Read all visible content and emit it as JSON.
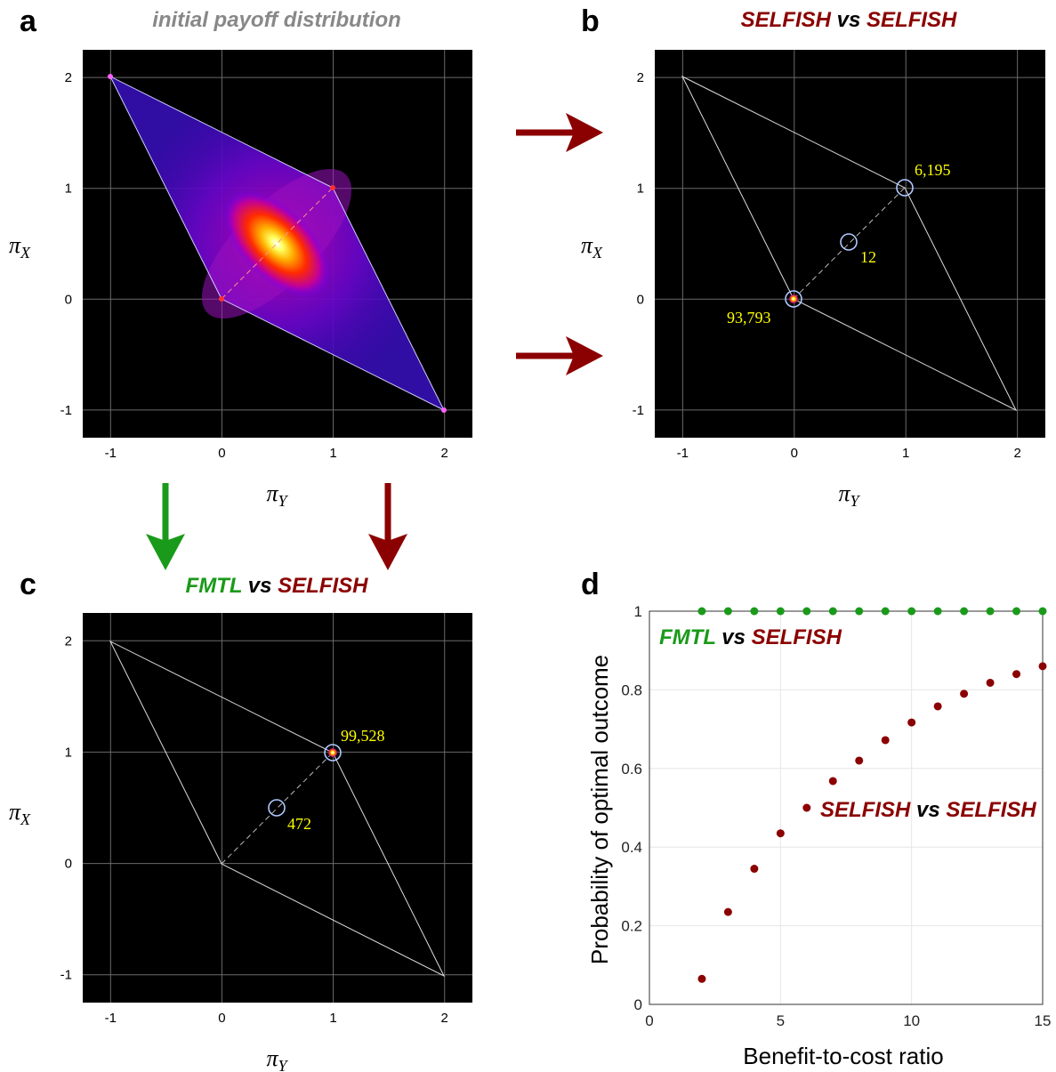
{
  "colors": {
    "selfish": "#8b0000",
    "fmtl": "#1a9a1a",
    "title_gray": "#888888",
    "annotation": "#ffff00"
  },
  "panels": {
    "a": {
      "letter": "a",
      "title": "initial payoff distribution",
      "xlabel": "π",
      "xlabel_sub": "Y",
      "ylabel": "π",
      "ylabel_sub": "X",
      "xticks": [
        "-1",
        "0",
        "1",
        "2"
      ],
      "yticks": [
        "2",
        "1",
        "0",
        "-1"
      ]
    },
    "b": {
      "letter": "b",
      "title_part1": "SELFISH",
      "title_vs": "vs",
      "title_part2": "SELFISH",
      "xlabel": "π",
      "xlabel_sub": "Y",
      "ylabel": "π",
      "ylabel_sub": "X",
      "xticks": [
        "-1",
        "0",
        "1",
        "2"
      ],
      "yticks": [
        "2",
        "1",
        "0",
        "-1"
      ],
      "annotations": [
        "6,195",
        "12",
        "93,793"
      ]
    },
    "c": {
      "letter": "c",
      "title_part1": "FMTL",
      "title_vs": "vs",
      "title_part2": "SELFISH",
      "xlabel": "π",
      "xlabel_sub": "Y",
      "ylabel": "π",
      "ylabel_sub": "X",
      "xticks": [
        "-1",
        "0",
        "1",
        "2"
      ],
      "yticks": [
        "2",
        "1",
        "0",
        "-1"
      ],
      "annotations": [
        "99,528",
        "472"
      ]
    },
    "d": {
      "letter": "d",
      "xlabel": "Benefit-to-cost ratio",
      "ylabel": "Probability of optimal outcome",
      "legend1_part1": "FMTL",
      "legend1_vs": "vs",
      "legend1_part2": "SELFISH",
      "legend2_part1": "SELFISH",
      "legend2_vs": "vs",
      "legend2_part2": "SELFISH"
    }
  },
  "chart_data": [
    {
      "type": "heatmap",
      "panel": "a",
      "title": "initial payoff distribution",
      "xlabel": "πY",
      "ylabel": "πX",
      "xlim": [
        -1.25,
        2.25
      ],
      "ylim": [
        -1.25,
        2.25
      ],
      "outline": [
        [
          -1,
          2
        ],
        [
          1,
          1
        ],
        [
          2,
          -1
        ],
        [
          0,
          0
        ]
      ],
      "peak": [
        0.5,
        0.5
      ],
      "colormap": "hot"
    },
    {
      "type": "scatter",
      "panel": "b",
      "title": "SELFISH vs SELFISH",
      "xlabel": "πY",
      "ylabel": "πX",
      "xlim": [
        -1.25,
        2.25
      ],
      "ylim": [
        -1.25,
        2.25
      ],
      "outline": [
        [
          -1,
          2
        ],
        [
          1,
          1
        ],
        [
          2,
          -1
        ],
        [
          0,
          0
        ]
      ],
      "points": [
        {
          "x": 1,
          "y": 1,
          "count": 6195
        },
        {
          "x": 0.5,
          "y": 0.5,
          "count": 12
        },
        {
          "x": 0,
          "y": 0,
          "count": 93793
        }
      ]
    },
    {
      "type": "scatter",
      "panel": "c",
      "title": "FMTL vs SELFISH",
      "xlabel": "πY",
      "ylabel": "πX",
      "xlim": [
        -1.25,
        2.25
      ],
      "ylim": [
        -1.25,
        2.25
      ],
      "outline": [
        [
          -1,
          2
        ],
        [
          1,
          1
        ],
        [
          2,
          -1
        ],
        [
          0,
          0
        ]
      ],
      "points": [
        {
          "x": 1,
          "y": 1,
          "count": 99528
        },
        {
          "x": 0.5,
          "y": 0.5,
          "count": 472
        }
      ]
    },
    {
      "type": "scatter",
      "panel": "d",
      "xlabel": "Benefit-to-cost ratio",
      "ylabel": "Probability of optimal outcome",
      "xlim": [
        0,
        15
      ],
      "ylim": [
        0,
        1
      ],
      "xticks": [
        0,
        5,
        10,
        15
      ],
      "yticks": [
        0,
        0.2,
        0.4,
        0.6,
        0.8,
        1
      ],
      "grid": true,
      "x": [
        2,
        3,
        4,
        5,
        6,
        7,
        8,
        9,
        10,
        11,
        12,
        13,
        14,
        15
      ],
      "series": [
        {
          "name": "FMTL vs SELFISH",
          "color": "#1a9a1a",
          "values": [
            1,
            1,
            1,
            1,
            1,
            1,
            1,
            1,
            1,
            1,
            1,
            1,
            1,
            1
          ]
        },
        {
          "name": "SELFISH vs SELFISH",
          "color": "#8b0000",
          "values": [
            0.065,
            0.235,
            0.345,
            0.435,
            0.5,
            0.568,
            0.62,
            0.672,
            0.717,
            0.758,
            0.79,
            0.818,
            0.84,
            0.86
          ]
        }
      ]
    }
  ]
}
